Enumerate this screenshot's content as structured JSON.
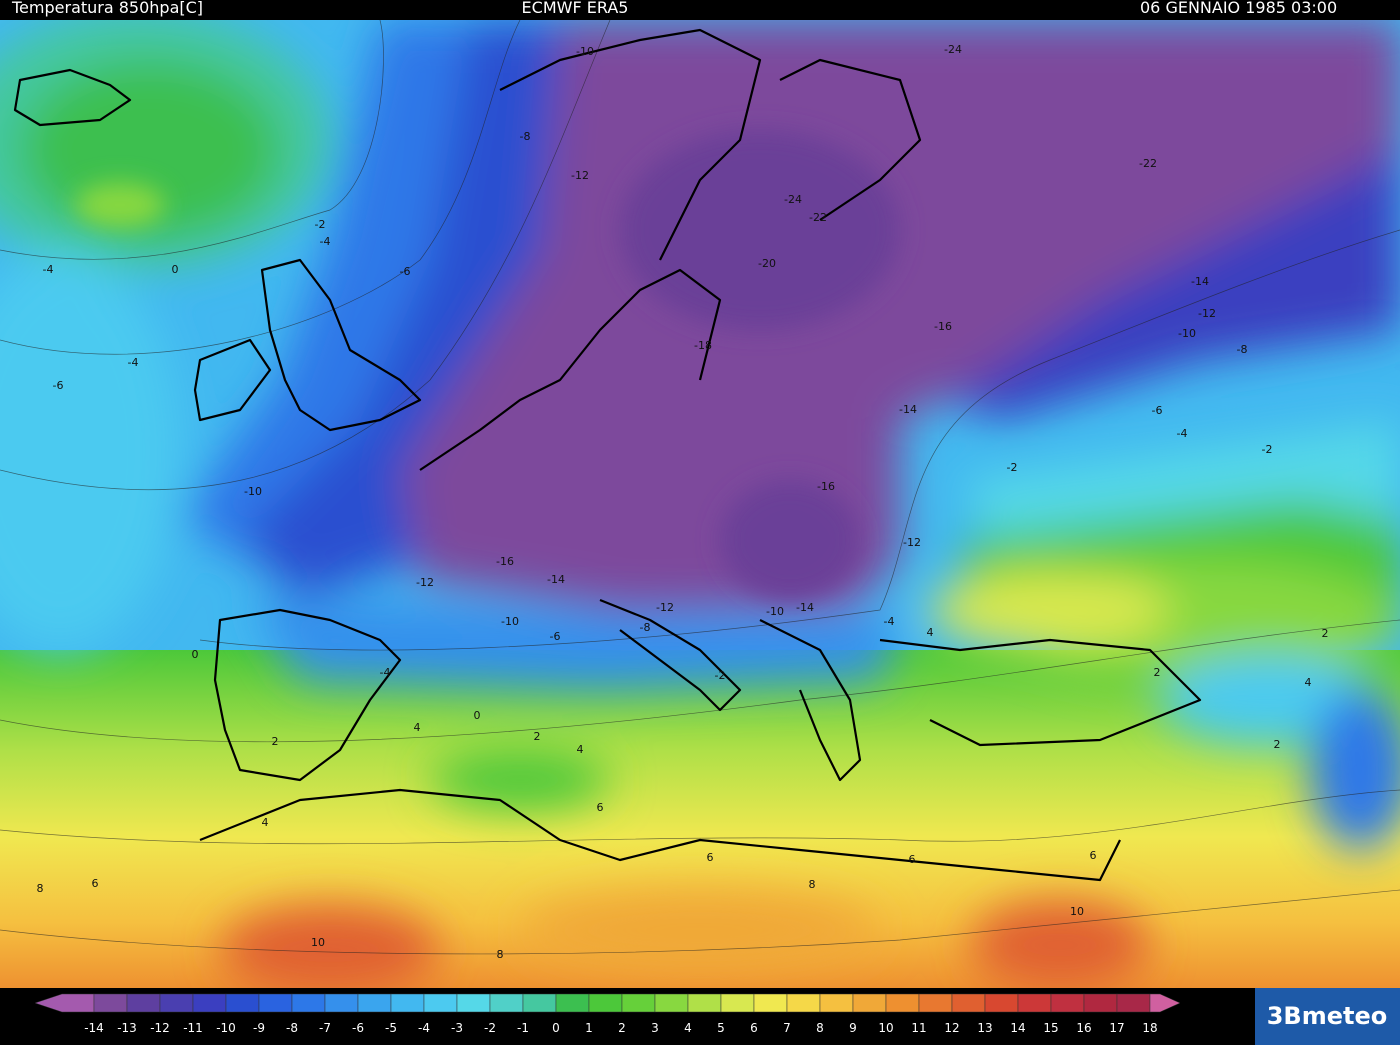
{
  "header": {
    "left": "Temperatura 850hpa[C]",
    "center": "ECMWF ERA5",
    "right": "06 GENNAIO 1985 03:00"
  },
  "map": {
    "contour_labels": [
      "-10",
      "-8",
      "-12",
      "-2",
      "-4",
      "-4",
      "0",
      "-6",
      "-4",
      "-6",
      "-10",
      "-12",
      "-16",
      "-14",
      "-10",
      "-6",
      "-8",
      "-12",
      "-10",
      "-14",
      "0",
      "-4",
      "-2",
      "2",
      "4",
      "0",
      "2",
      "4",
      "6",
      "4",
      "6",
      "8",
      "10",
      "8",
      "6",
      "8",
      "6",
      "10",
      "-24",
      "-22",
      "-24",
      "-22",
      "-20",
      "-18",
      "-16",
      "-14",
      "-12",
      "-10",
      "-8",
      "-14",
      "-16",
      "-12",
      "-6",
      "-4",
      "-2",
      "-2",
      "-4",
      "4",
      "2",
      "2",
      "4",
      "2",
      "6"
    ]
  },
  "colorbar": {
    "labels": [
      -14,
      -13,
      -12,
      -11,
      -10,
      -9,
      -8,
      -7,
      -6,
      -5,
      -4,
      -3,
      -2,
      -1,
      0,
      1,
      2,
      3,
      4,
      5,
      6,
      7,
      8,
      9,
      10,
      11,
      12,
      13,
      14,
      15,
      16,
      17,
      18
    ],
    "colors": [
      "#a45aae",
      "#7d4a9c",
      "#5e3fa0",
      "#4a3fb0",
      "#3b3fc0",
      "#2a4fd0",
      "#2a63e0",
      "#2d78e8",
      "#3590ec",
      "#3aa5ee",
      "#42b8f0",
      "#4ccaf0",
      "#55d8e8",
      "#50d0c8",
      "#45c8a0",
      "#3cbf50",
      "#4cc83a",
      "#66d03a",
      "#88d840",
      "#b0e048",
      "#d8e850",
      "#f0e850",
      "#f5d848",
      "#f5c040",
      "#f0a838",
      "#ee9030",
      "#e87830",
      "#e06030",
      "#d84830",
      "#cc3838",
      "#c03040",
      "#b02840",
      "#a82848",
      "#d060a0"
    ]
  },
  "logo": "3Bmeteo"
}
